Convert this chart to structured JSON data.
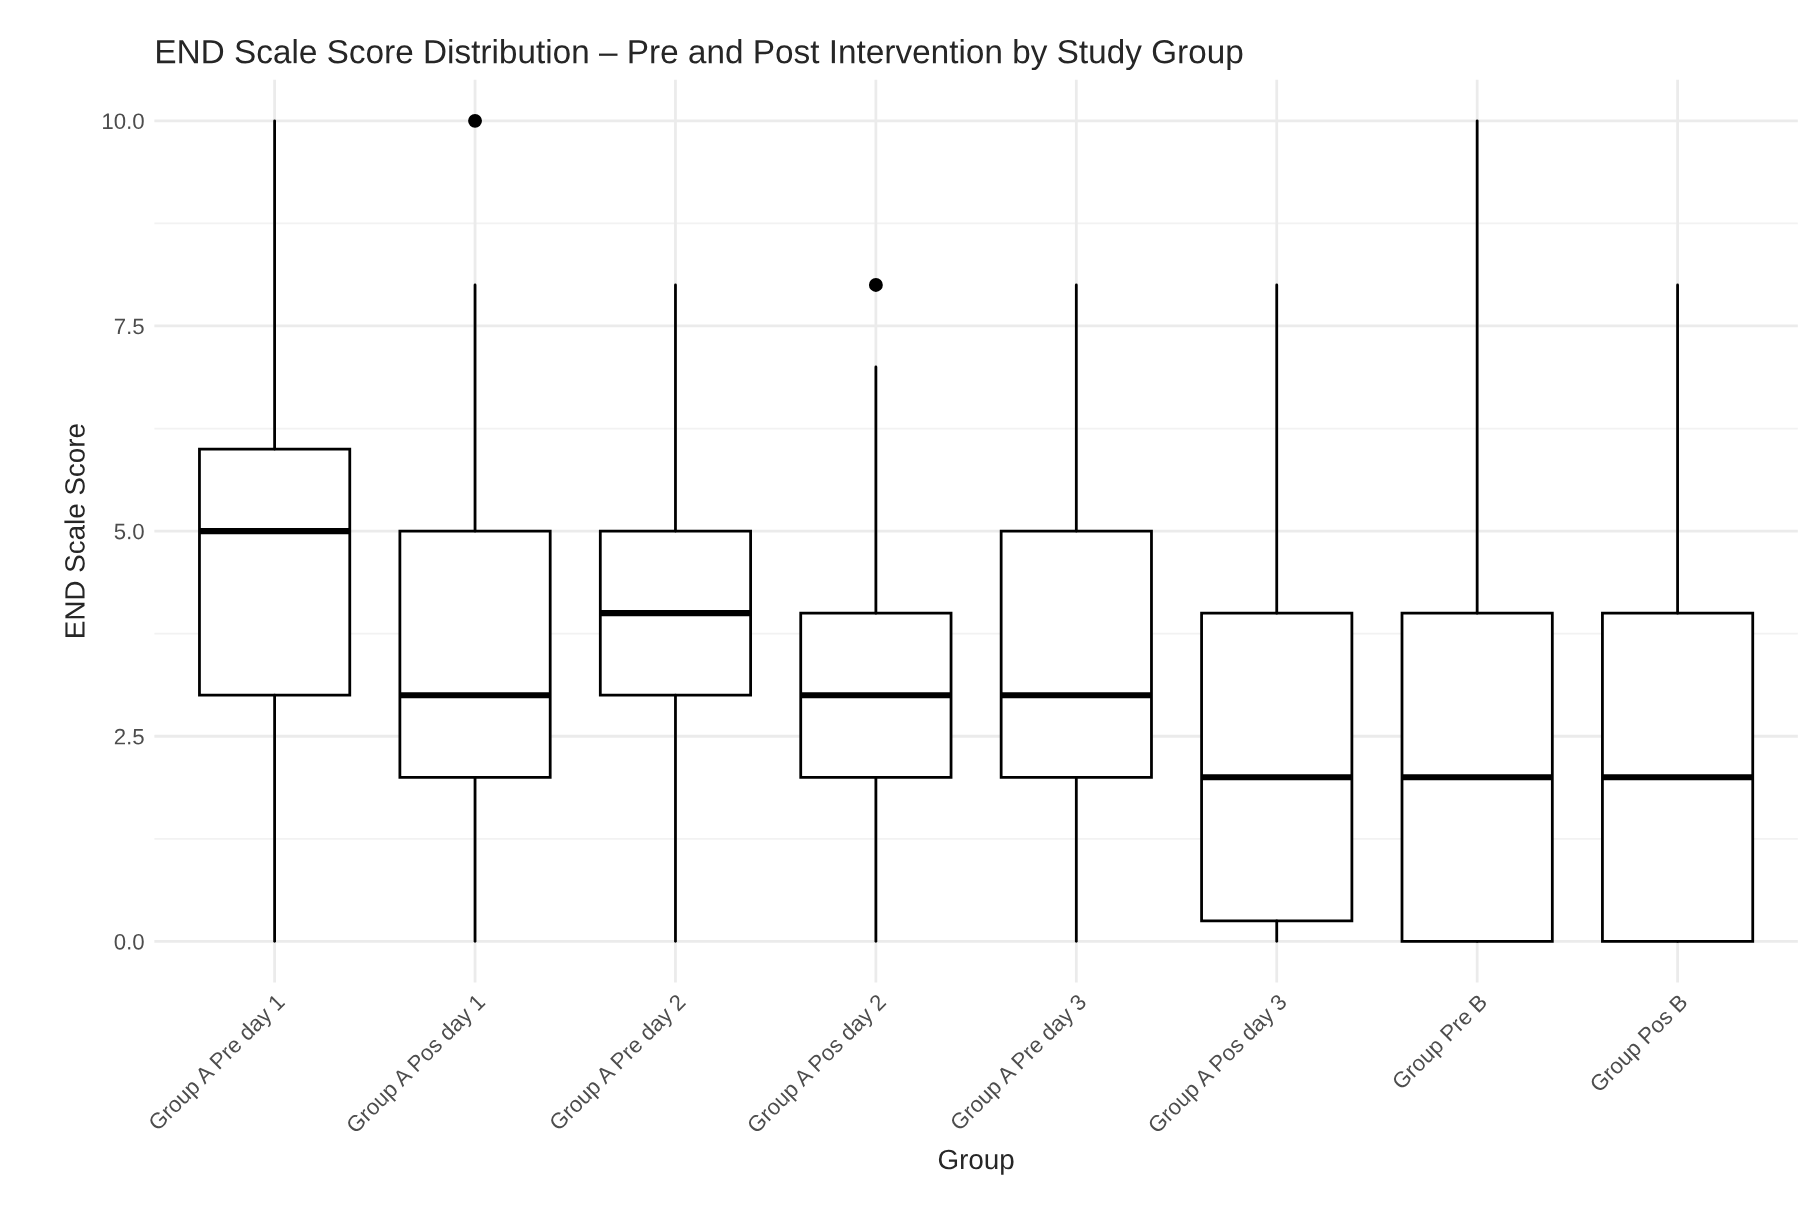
{
  "chart_data": {
    "type": "box",
    "title": "END Scale Score Distribution – Pre and Post Intervention by Study Group",
    "xlabel": "Group",
    "ylabel": "END Scale Score",
    "categories": [
      "Group A Pre day 1",
      "Group A Pos day 1",
      "Group A Pre day 2",
      "Group A Pos day 2",
      "Group A Pre day 3",
      "Group A Pos day 3",
      "Group Pre B",
      "Group Pos B"
    ],
    "boxes": [
      {
        "low": 0,
        "q1": 3,
        "median": 5,
        "q3": 6,
        "high": 10
      },
      {
        "low": 0,
        "q1": 2,
        "median": 3,
        "q3": 5,
        "high": 8,
        "outliers": [
          10
        ]
      },
      {
        "low": 0,
        "q1": 3,
        "median": 4,
        "q3": 5,
        "high": 8
      },
      {
        "low": 0,
        "q1": 2,
        "median": 3,
        "q3": 4,
        "high": 7,
        "outliers": [
          8
        ]
      },
      {
        "low": 0,
        "q1": 2,
        "median": 3,
        "q3": 5,
        "high": 8
      },
      {
        "low": 0,
        "q1": 0.25,
        "median": 2,
        "q3": 4,
        "high": 8
      },
      {
        "low": 0,
        "q1": 0,
        "median": 2,
        "q3": 4,
        "high": 10
      },
      {
        "low": 0,
        "q1": 0,
        "median": 2,
        "q3": 4,
        "high": 8
      }
    ],
    "ylim": [
      -0.5,
      10.5
    ],
    "yticks": [
      {
        "value": 0,
        "label": "0.0"
      },
      {
        "value": 2.5,
        "label": "2.5"
      },
      {
        "value": 5,
        "label": "5.0"
      },
      {
        "value": 7.5,
        "label": "7.5"
      },
      {
        "value": 10,
        "label": "10.0"
      }
    ],
    "grid": true
  }
}
